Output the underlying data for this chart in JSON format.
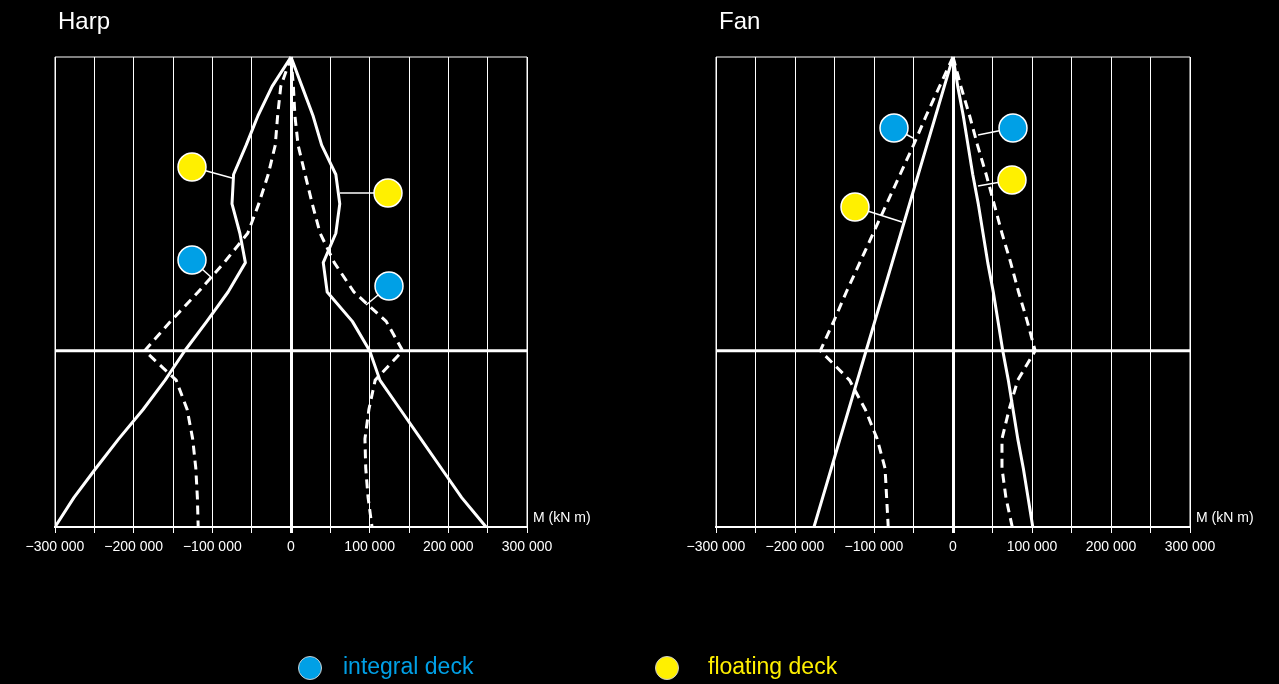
{
  "chart_data": [
    {
      "type": "line",
      "orientation": "horizontal",
      "title": "Harp",
      "xlabel": "M (kN m)",
      "categories": [
        null,
        null,
        null,
        null,
        null,
        null,
        null,
        null,
        null,
        null,
        null,
        null,
        null,
        null,
        null,
        null,
        null
      ],
      "xlim": [
        -300000,
        300000
      ],
      "xticks": [
        {
          "value": -300000,
          "label": "−300 000"
        },
        {
          "value": -250000,
          "label": null
        },
        {
          "value": -200000,
          "label": "−200 000"
        },
        {
          "value": -150000,
          "label": null
        },
        {
          "value": -100000,
          "label": "−100 000"
        },
        {
          "value": -50000,
          "label": null
        },
        0,
        {
          "value": 50000,
          "label": null
        },
        {
          "value": 100000,
          "label": "100 000"
        },
        {
          "value": 150000,
          "label": null
        },
        {
          "value": 200000,
          "label": "200 000"
        },
        {
          "value": 250000,
          "label": null
        },
        {
          "value": 300000,
          "label": "300 000"
        }
      ],
      "grid": "x",
      "series": [
        {
          "color": "#ffffff",
          "line_style": "solid",
          "values": [
            0,
            -24000,
            -42000,
            -57000,
            -73000,
            -75000,
            -65000,
            -58000,
            -80000,
            -107000,
            -135000,
            -160000,
            -188000,
            -219000,
            -248000,
            -276000,
            -300000
          ]
        },
        {
          "color": "#ffffff",
          "line_style": "dashed",
          "values": [
            0,
            -13000,
            -17000,
            -20000,
            -29000,
            -41000,
            -55000,
            -85000,
            -118000,
            -153000,
            -186000,
            -146000,
            -132000,
            -125000,
            -121000,
            -119000,
            -118000
          ]
        },
        {
          "color": "#ffffff",
          "line_style": "solid",
          "values": [
            0,
            14000,
            28000,
            39000,
            57000,
            62000,
            57000,
            41000,
            46000,
            78000,
            100000,
            113000,
            139000,
            165000,
            191000,
            217000,
            248000
          ]
        },
        {
          "color": "#ffffff",
          "line_style": "dashed",
          "values": [
            0,
            3000,
            5000,
            9000,
            18000,
            27000,
            37000,
            55000,
            80000,
            121000,
            142000,
            107000,
            99000,
            94000,
            95000,
            98000,
            103000
          ]
        }
      ],
      "annotations": [
        "integral deck",
        "floating deck"
      ]
    },
    {
      "type": "line",
      "orientation": "horizontal",
      "title": "Fan",
      "xlabel": "M (kN m)",
      "categories": [
        null,
        null,
        null,
        null,
        null,
        null,
        null,
        null,
        null,
        null,
        null,
        null,
        null,
        null,
        null,
        null,
        null
      ],
      "xlim": [
        -300000,
        300000
      ],
      "xticks": [
        {
          "value": -300000,
          "label": "−300 000"
        },
        {
          "value": -250000,
          "label": null
        },
        {
          "value": -200000,
          "label": "−200 000"
        },
        {
          "value": -150000,
          "label": null
        },
        {
          "value": -100000,
          "label": "−100 000"
        },
        {
          "value": -50000,
          "label": null
        },
        0,
        {
          "value": 50000,
          "label": null
        },
        {
          "value": 100000,
          "label": "100 000"
        },
        {
          "value": 150000,
          "label": null
        },
        {
          "value": 200000,
          "label": "200 000"
        },
        {
          "value": 250000,
          "label": null
        },
        {
          "value": 300000,
          "label": "300 000"
        }
      ],
      "grid": "x",
      "series": [
        {
          "color": "#ffffff",
          "line_style": "solid",
          "values": [
            0,
            -11000,
            -22000,
            -33000,
            -44000,
            -55000,
            -66000,
            -77000,
            -88000,
            -99000,
            -110000,
            -121000,
            -132000,
            -143000,
            -154000,
            -165000,
            -176000
          ]
        },
        {
          "color": "#ffffff",
          "line_style": "dashed",
          "values": [
            0,
            -17000,
            -34000,
            -50000,
            -67000,
            -84000,
            -101000,
            -118000,
            -135000,
            -151000,
            -168000,
            -131000,
            -111000,
            -96000,
            -86000,
            -84000,
            -82000
          ]
        },
        {
          "color": "#ffffff",
          "line_style": "solid",
          "values": [
            0,
            6000,
            13000,
            19000,
            25000,
            32000,
            38000,
            44000,
            51000,
            57000,
            63000,
            70000,
            76000,
            82000,
            89000,
            95000,
            101000
          ]
        },
        {
          "color": "#ffffff",
          "line_style": "dashed",
          "values": [
            0,
            10000,
            21000,
            31000,
            42000,
            52000,
            62000,
            73000,
            83000,
            94000,
            104000,
            82000,
            71000,
            62000,
            62000,
            67000,
            75000
          ]
        }
      ]
    }
  ]
}
